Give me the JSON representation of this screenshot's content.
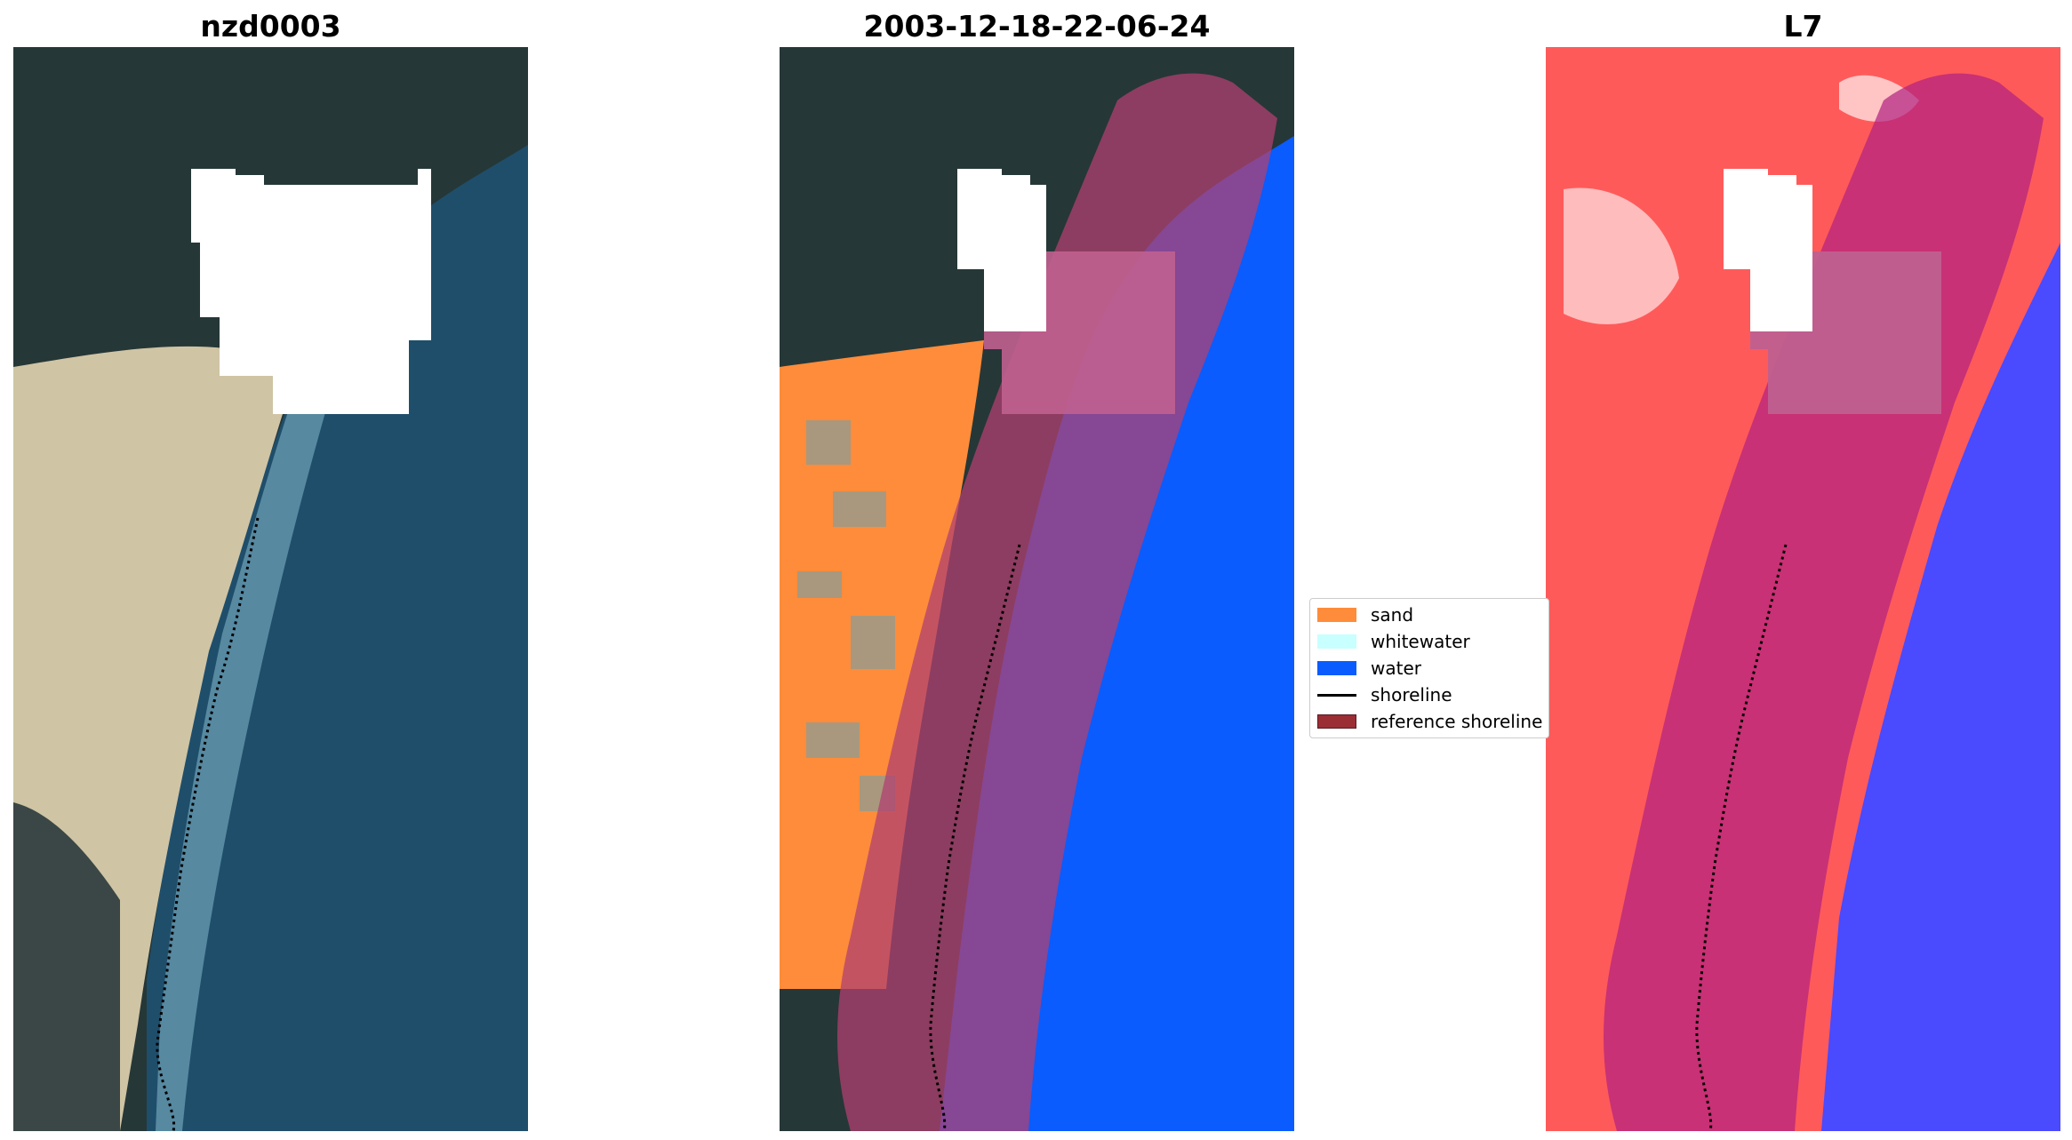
{
  "titles": {
    "left": "nzd0003",
    "middle": "2003-12-18-22-06-24",
    "right": "L7"
  },
  "legend": {
    "items": [
      {
        "label": "sand",
        "color": "#ff8c3a",
        "kind": "patch"
      },
      {
        "label": "whitewater",
        "color": "#c8ffff",
        "kind": "patch"
      },
      {
        "label": "water",
        "color": "#0a5cff",
        "kind": "patch"
      },
      {
        "label": "shoreline",
        "color": "#000000",
        "kind": "line"
      },
      {
        "label": "reference shoreline",
        "color": "#9b2d35",
        "kind": "patch"
      }
    ]
  },
  "colors": {
    "land_dark": "#2a3a3a",
    "sand_beach": "#d8cfb0",
    "ocean": "#1f4f6e",
    "cloud_mask": "#ffffff",
    "index_land": "#ff4a4a",
    "index_water": "#4a4aff",
    "buffer_overlay": "#b04070"
  }
}
